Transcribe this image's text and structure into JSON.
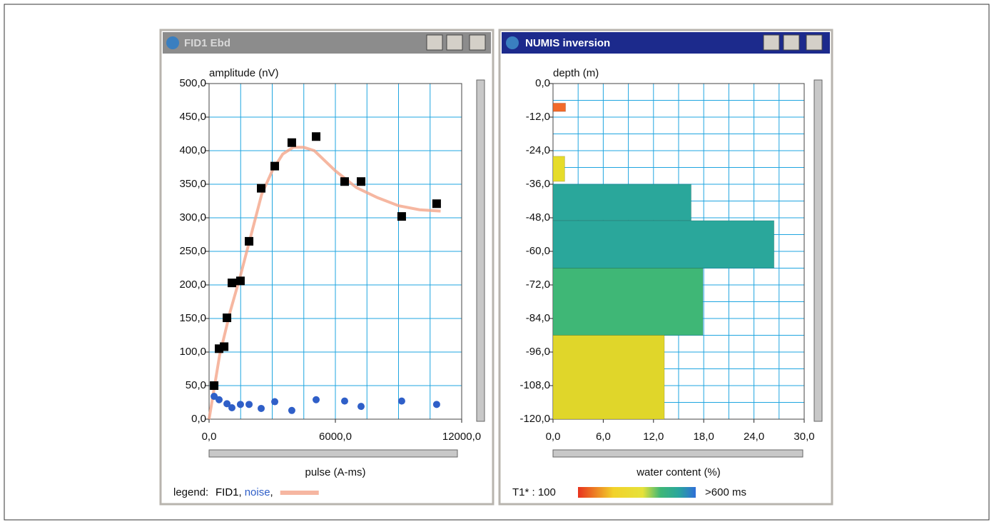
{
  "windows": [
    {
      "title": "FID1 Ebd"
    },
    {
      "title": "NUMIS inversion"
    }
  ],
  "chart_data": [
    {
      "type": "scatter",
      "y_label": "amplitude (nV)",
      "x_label": "pulse (A-ms)",
      "xlim": [
        0,
        12000
      ],
      "xticks": [
        {
          "value": 0,
          "label": "0,0"
        },
        {
          "value": 6000,
          "label": "6000,0"
        },
        {
          "value": 12000,
          "label": "12000,0"
        }
      ],
      "xgrid": [
        1500,
        3000,
        4500,
        7500,
        9000,
        10500
      ],
      "ylim": [
        0,
        500
      ],
      "yticks": [
        {
          "value": 0,
          "label": "0,0"
        },
        {
          "value": 50,
          "label": "50,0"
        },
        {
          "value": 100,
          "label": "100,0"
        },
        {
          "value": 150,
          "label": "150,0"
        },
        {
          "value": 200,
          "label": "200,0"
        },
        {
          "value": 250,
          "label": "250,0"
        },
        {
          "value": 300,
          "label": "300,0"
        },
        {
          "value": 350,
          "label": "350,0"
        },
        {
          "value": 400,
          "label": "400,0"
        },
        {
          "value": 450,
          "label": "450,0"
        },
        {
          "value": 500,
          "label": "500,0"
        }
      ],
      "grid": true,
      "legend_title": "legend:",
      "legend_separator": ",",
      "series": [
        {
          "name": "FID1",
          "color": "#000000",
          "marker": "square",
          "x": [
            240,
            475,
            715,
            850,
            1085,
            1490,
            1900,
            2475,
            3120,
            3930,
            5085,
            6440,
            7220,
            9150,
            10810
          ],
          "values": [
            50,
            105,
            108,
            151,
            203,
            206,
            265,
            344,
            377,
            412,
            421,
            354,
            354,
            302,
            321
          ]
        },
        {
          "name": "noise",
          "color": "#2f5fc8",
          "marker": "circle",
          "x": [
            240,
            475,
            850,
            1085,
            1490,
            1900,
            2475,
            3120,
            3930,
            5085,
            6440,
            7220,
            9150,
            10810
          ],
          "values": [
            34,
            29,
            23,
            17,
            22,
            22,
            16,
            26,
            13,
            29,
            27,
            19,
            27,
            22
          ]
        },
        {
          "color": "#f4a58a",
          "marker": "line",
          "x": [
            0,
            500,
            1000,
            1500,
            2000,
            2500,
            3000,
            3500,
            4000,
            4500,
            5000,
            6000,
            7000,
            8000,
            9000,
            10000,
            11000
          ],
          "values": [
            0,
            95,
            160,
            215,
            275,
            335,
            370,
            395,
            405,
            405,
            400,
            370,
            345,
            330,
            318,
            312,
            310
          ]
        }
      ]
    },
    {
      "type": "bar",
      "orientation": "horizontal",
      "y_label": "depth (m)",
      "x_label": "water content (%)",
      "xlim": [
        0,
        30
      ],
      "xticks": [
        {
          "value": 0,
          "label": "0,0"
        },
        {
          "value": 6,
          "label": "6,0"
        },
        {
          "value": 12,
          "label": "12,0"
        },
        {
          "value": 18,
          "label": "18,0"
        },
        {
          "value": 24,
          "label": "24,0"
        },
        {
          "value": 30,
          "label": "30,0"
        }
      ],
      "xgrid": [
        3,
        9,
        15,
        21,
        27
      ],
      "ylim": [
        -120,
        0
      ],
      "yticks": [
        {
          "value": 0,
          "label": "0,0"
        },
        {
          "value": -12,
          "label": "-12,0"
        },
        {
          "value": -24,
          "label": "-24,0"
        },
        {
          "value": -36,
          "label": "-36,0"
        },
        {
          "value": -48,
          "label": "-48,0"
        },
        {
          "value": -60,
          "label": "-60,0"
        },
        {
          "value": -72,
          "label": "-72,0"
        },
        {
          "value": -84,
          "label": "-84,0"
        },
        {
          "value": -96,
          "label": "-96,0"
        },
        {
          "value": -108,
          "label": "-108,0"
        },
        {
          "value": -120,
          "label": "-120,0"
        }
      ],
      "ygrid": [
        -6,
        -18,
        -30,
        -42,
        -54,
        -66,
        -78,
        -90,
        -102,
        -114
      ],
      "grid": true,
      "series": [
        {
          "top": [
            -7,
            -26,
            -36,
            -49,
            -66,
            -90
          ],
          "bottom": [
            -10,
            -35,
            -49,
            -66,
            -90,
            -120
          ],
          "values": [
            1.5,
            1.4,
            16.5,
            26.4,
            17.9,
            13.3
          ],
          "colors": [
            "#f26a2a",
            "#e6dc2a",
            "#2aa79b",
            "#2aa79b",
            "#3fb776",
            "#e0d62a"
          ]
        }
      ],
      "colorbar": {
        "label": "T1* : 100",
        "end_label": ">600 ms"
      }
    }
  ]
}
